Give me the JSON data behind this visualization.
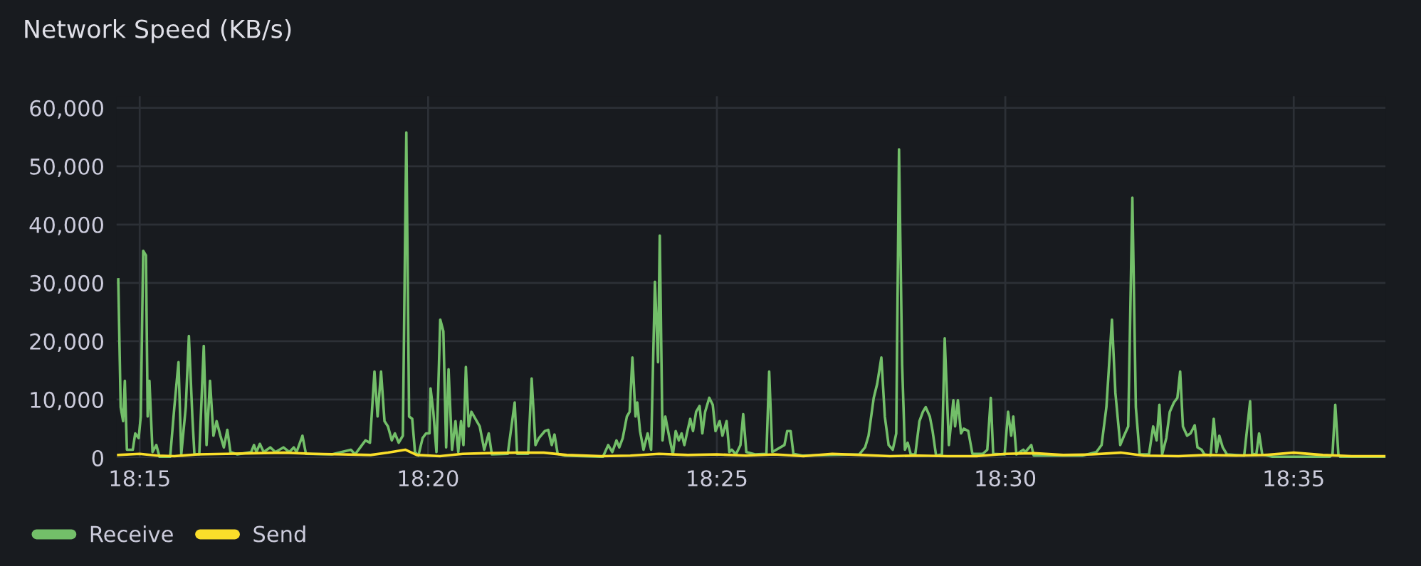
{
  "chart_data": {
    "type": "line",
    "title": "Network Speed (KB/s)",
    "xlim": [
      18.2433,
      18.6098
    ],
    "xticks": [
      {
        "value": 18.25,
        "label": "18:15"
      },
      {
        "value": 18.3333,
        "label": "18:20"
      },
      {
        "value": 18.4167,
        "label": "18:25"
      },
      {
        "value": 18.5,
        "label": "18:30"
      },
      {
        "value": 18.5833,
        "label": "18:35"
      }
    ],
    "ylim": [
      0,
      62000
    ],
    "yticks": [
      0,
      {
        "value": 10000,
        "label": "10,000"
      },
      {
        "value": 20000,
        "label": "20,000"
      },
      {
        "value": 30000,
        "label": "30,000"
      },
      {
        "value": 40000,
        "label": "40,000"
      },
      {
        "value": 50000,
        "label": "50,000"
      },
      {
        "value": 60000,
        "label": "60,000"
      }
    ],
    "grid": true,
    "legend": "bottom left",
    "marker": "none",
    "line_style": "solid",
    "series": [
      {
        "name": "Receive",
        "color": "#73bf69",
        "x": [
          18.2438,
          18.2445,
          18.2452,
          18.2457,
          18.2463,
          18.248,
          18.2487,
          18.2497,
          18.2503,
          18.251,
          18.2518,
          18.2523,
          18.2528,
          18.2537,
          18.2548,
          18.2557,
          18.2588,
          18.26,
          18.2612,
          18.262,
          18.2633,
          18.2642,
          18.2652,
          18.2658,
          18.2672,
          18.2685,
          18.2693,
          18.2703,
          18.2713,
          18.2722,
          18.2733,
          18.2743,
          18.2753,
          18.2762,
          18.2782,
          18.2822,
          18.283,
          18.2837,
          18.2847,
          18.2858,
          18.2877,
          18.2892,
          18.2915,
          18.2932,
          18.2945,
          18.2953,
          18.297,
          18.298,
          18.3055,
          18.311,
          18.3122,
          18.3152,
          18.3165,
          18.3178,
          18.3187,
          18.3197,
          18.3207,
          18.3217,
          18.3228,
          18.3237,
          18.3248,
          18.326,
          18.327,
          18.3278,
          18.3287,
          18.3295,
          18.3305,
          18.3317,
          18.3327,
          18.3337,
          18.334,
          18.3348,
          18.3357,
          18.3368,
          18.3377,
          18.3385,
          18.3392,
          18.3402,
          18.3412,
          18.342,
          18.3428,
          18.3435,
          18.3442,
          18.345,
          18.3458,
          18.3482,
          18.3495,
          18.3508,
          18.3517,
          18.3563,
          18.3583,
          18.359,
          18.3622,
          18.3632,
          18.3643,
          18.3653,
          18.367,
          18.368,
          18.369,
          18.3698,
          18.3707,
          18.3728,
          18.3838,
          18.3853,
          18.3865,
          18.3877,
          18.3885,
          18.3895,
          18.3907,
          18.3915,
          18.3923,
          18.3932,
          18.3937,
          18.3945,
          18.3955,
          18.3967,
          18.3977,
          18.3988,
          18.3997,
          18.4002,
          18.401,
          18.4018,
          18.403,
          18.404,
          18.4048,
          18.4057,
          18.4065,
          18.4073,
          18.4082,
          18.409,
          18.4098,
          18.4107,
          18.4117,
          18.4125,
          18.4133,
          18.4145,
          18.4155,
          18.4163,
          18.4175,
          18.4183,
          18.4195,
          18.4203,
          18.421,
          18.4222,
          18.4235,
          18.4243,
          18.4252,
          18.4277,
          18.431,
          18.4318,
          18.4327,
          18.4362,
          18.437,
          18.438,
          18.4388,
          18.4413,
          18.4578,
          18.4595,
          18.4605,
          18.462,
          18.463,
          18.4642,
          18.4652,
          18.4663,
          18.4675,
          18.4685,
          18.4693,
          18.4702,
          18.471,
          18.4718,
          18.4727,
          18.474,
          18.4752,
          18.4762,
          18.477,
          18.4782,
          18.479,
          18.48,
          18.4817,
          18.4825,
          18.4837,
          18.485,
          18.4855,
          18.4863,
          18.4872,
          18.488,
          18.4893,
          18.4905,
          18.4935,
          18.4948,
          18.4958,
          18.4965,
          18.4998,
          18.5008,
          18.5017,
          18.5023,
          18.5032,
          18.5052,
          18.5058,
          18.5075,
          18.5082,
          18.5223,
          18.5263,
          18.5278,
          18.5292,
          18.5308,
          18.5318,
          18.5332,
          18.5343,
          18.5355,
          18.5367,
          18.5377,
          18.5388,
          18.5415,
          18.5427,
          18.5437,
          18.5445,
          18.5453,
          18.5465,
          18.5475,
          18.5487,
          18.5497,
          18.5505,
          18.5513,
          18.5525,
          18.5535,
          18.5547,
          18.5555,
          18.5567,
          18.5575,
          18.5593,
          18.5602,
          18.561,
          18.5618,
          18.5628,
          18.564,
          18.569,
          18.5707,
          18.5713,
          18.5725,
          18.5733,
          18.5742,
          18.5772,
          18.5937,
          18.5945,
          18.5953,
          18.5962,
          18.597,
          18.6098
        ],
        "values": [
          30600,
          8700,
          6300,
          13200,
          1400,
          1400,
          4200,
          3400,
          7100,
          35500,
          34700,
          7100,
          13200,
          1000,
          2200,
          200,
          200,
          8700,
          16400,
          600,
          8700,
          20900,
          7100,
          600,
          600,
          19200,
          2200,
          13200,
          3800,
          6300,
          3800,
          1800,
          4800,
          1000,
          600,
          1000,
          2200,
          1000,
          2400,
          1000,
          1800,
          1000,
          1800,
          1000,
          1800,
          1000,
          3800,
          700,
          600,
          1400,
          600,
          3000,
          2600,
          14800,
          7100,
          14800,
          6300,
          5400,
          3000,
          4200,
          2600,
          3800,
          55800,
          7100,
          6700,
          1000,
          400,
          3400,
          4200,
          4200,
          11900,
          7900,
          1000,
          23700,
          21700,
          1800,
          15200,
          1400,
          6300,
          1000,
          6300,
          2200,
          15600,
          5400,
          7900,
          5400,
          1400,
          4200,
          600,
          700,
          9500,
          700,
          700,
          13600,
          2200,
          3400,
          4600,
          4800,
          2200,
          4000,
          700,
          400,
          200,
          2200,
          1000,
          3000,
          1800,
          3400,
          7100,
          7900,
          17200,
          7100,
          9500,
          4600,
          1400,
          4200,
          1400,
          30200,
          16400,
          38100,
          3000,
          7100,
          3400,
          600,
          4600,
          3000,
          4200,
          2200,
          4600,
          6700,
          4600,
          7900,
          8900,
          4200,
          7900,
          10300,
          9100,
          4600,
          6300,
          3800,
          6300,
          1000,
          1400,
          600,
          2200,
          7500,
          1000,
          600,
          700,
          14800,
          1000,
          2200,
          4600,
          4600,
          700,
          400,
          600,
          1800,
          3800,
          10300,
          12700,
          17200,
          7100,
          2200,
          1400,
          4200,
          52900,
          16000,
          1400,
          2600,
          600,
          600,
          6300,
          7900,
          8700,
          7100,
          4600,
          400,
          600,
          20500,
          2200,
          9900,
          5400,
          9900,
          4200,
          5000,
          4600,
          700,
          700,
          1400,
          10300,
          700,
          600,
          7900,
          3800,
          7100,
          600,
          1400,
          1000,
          2200,
          400,
          400,
          1000,
          2200,
          8700,
          23700,
          11100,
          2200,
          3800,
          5400,
          44600,
          8700,
          600,
          600,
          5400,
          3000,
          9100,
          600,
          3400,
          7900,
          9500,
          10300,
          14800,
          5400,
          3800,
          4200,
          5600,
          1800,
          1400,
          600,
          400,
          6700,
          1000,
          3800,
          1800,
          600,
          400,
          9700,
          700,
          600,
          4200,
          600,
          200,
          200,
          600,
          9100,
          600,
          0,
          0
        ]
      },
      {
        "name": "Send",
        "color": "#fade2a",
        "x": [
          18.2438,
          18.25,
          18.255,
          18.26,
          18.2667,
          18.275,
          18.2833,
          18.2917,
          18.3,
          18.3083,
          18.3167,
          18.3217,
          18.3267,
          18.33,
          18.3367,
          18.3433,
          18.35,
          18.3583,
          18.3667,
          18.3733,
          18.3833,
          18.3917,
          18.4,
          18.4083,
          18.4167,
          18.425,
          18.4333,
          18.4417,
          18.45,
          18.4583,
          18.4667,
          18.475,
          18.4833,
          18.4917,
          18.5,
          18.5083,
          18.5167,
          18.525,
          18.5333,
          18.54,
          18.55,
          18.5583,
          18.5667,
          18.575,
          18.5833,
          18.5917,
          18.6,
          18.6098
        ],
        "values": [
          500,
          700,
          400,
          300,
          600,
          700,
          800,
          900,
          700,
          600,
          500,
          900,
          1400,
          500,
          300,
          700,
          800,
          900,
          900,
          500,
          300,
          400,
          700,
          500,
          600,
          400,
          600,
          300,
          700,
          500,
          300,
          400,
          300,
          300,
          700,
          800,
          500,
          600,
          900,
          400,
          300,
          500,
          400,
          500,
          900,
          500,
          300,
          300
        ]
      }
    ]
  }
}
